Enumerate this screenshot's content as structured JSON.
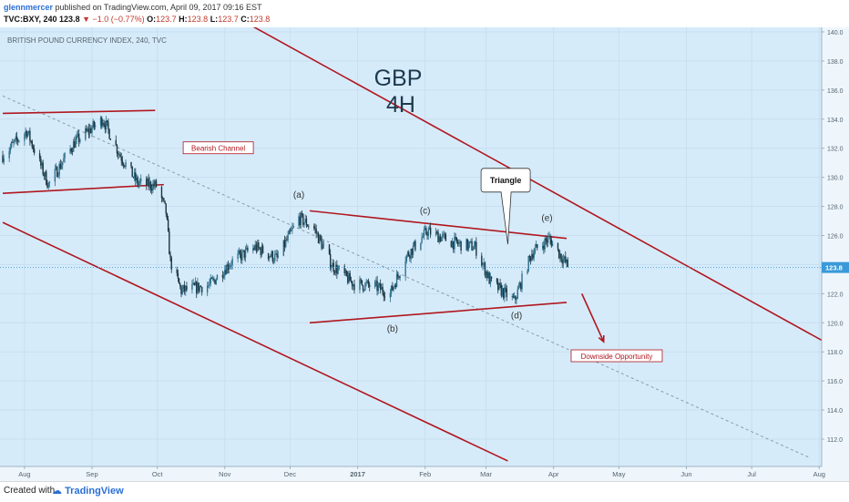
{
  "header": {
    "user": "glennmercer",
    "published": "published on TradingView.com, April 09, 2017 09:16 EST",
    "symbol": "TVC:BXY, 240",
    "last": "123.8",
    "change": "−1.0 (−0.77%)",
    "o_label": "O:",
    "o_value": "123.7",
    "h_label": "H:",
    "h_value": "123.8",
    "l_label": "L:",
    "l_value": "123.7",
    "c_label": "C:",
    "c_value": "123.8"
  },
  "footer": {
    "created": "Created with",
    "brand": "TradingView"
  },
  "colors": {
    "background": "#d6ebfa",
    "channel": "#b0171f",
    "candle_up": "#2f6f8a",
    "candle_down": "#1b3540",
    "price_line": "#4aa3df",
    "price_badge": "#3a9ad9"
  },
  "chart_data": {
    "type": "candlestick",
    "title": "BRITISH POUND CURRENCY INDEX, 240, TVC",
    "headline": [
      "GBP",
      "4H"
    ],
    "x_tick_labels": [
      "Aug",
      "Sep",
      "Oct",
      "Nov",
      "Dec",
      "2017",
      "Feb",
      "Mar",
      "Apr",
      "May",
      "Jun",
      "Jul",
      "Aug"
    ],
    "y_tick_labels": [
      "112.0",
      "114.0",
      "116.0",
      "118.0",
      "120.0",
      "122.0",
      "124.0",
      "126.0",
      "128.0",
      "130.0",
      "132.0",
      "134.0",
      "136.0",
      "138.0",
      "140.0"
    ],
    "ylim": [
      110.5,
      140.5
    ],
    "last_price": 123.8,
    "last_price_label": "123.8",
    "price_anchors": [
      {
        "date": "2016-07-22",
        "price": 131.5
      },
      {
        "date": "2016-08-02",
        "price": 133.2
      },
      {
        "date": "2016-08-12",
        "price": 129.5
      },
      {
        "date": "2016-08-24",
        "price": 132.4
      },
      {
        "date": "2016-09-06",
        "price": 134.0
      },
      {
        "date": "2016-09-14",
        "price": 131.5
      },
      {
        "date": "2016-09-22",
        "price": 129.6
      },
      {
        "date": "2016-10-01",
        "price": 129.4
      },
      {
        "date": "2016-10-05",
        "price": 127.6
      },
      {
        "date": "2016-10-07",
        "price": 124.2
      },
      {
        "date": "2016-10-12",
        "price": 122.2
      },
      {
        "date": "2016-10-25",
        "price": 122.6
      },
      {
        "date": "2016-11-04",
        "price": 124.2
      },
      {
        "date": "2016-11-15",
        "price": 125.2
      },
      {
        "date": "2016-11-25",
        "price": 124.4
      },
      {
        "date": "2016-12-05",
        "price": 127.2
      },
      {
        "date": "2016-12-12",
        "price": 126.5
      },
      {
        "date": "2016-12-20",
        "price": 124.0
      },
      {
        "date": "2016-12-30",
        "price": 122.7
      },
      {
        "date": "2017-01-09",
        "price": 122.5
      },
      {
        "date": "2017-01-16",
        "price": 122.0
      },
      {
        "date": "2017-01-23",
        "price": 124.5
      },
      {
        "date": "2017-02-02",
        "price": 126.3
      },
      {
        "date": "2017-02-14",
        "price": 125.5
      },
      {
        "date": "2017-02-24",
        "price": 125.2
      },
      {
        "date": "2017-03-03",
        "price": 122.8
      },
      {
        "date": "2017-03-14",
        "price": 121.5
      },
      {
        "date": "2017-03-22",
        "price": 124.8
      },
      {
        "date": "2017-03-30",
        "price": 125.8
      },
      {
        "date": "2017-04-08",
        "price": 123.8
      }
    ],
    "annotations": {
      "wave_labels": [
        {
          "text": "(a)",
          "date": "2016-12-05",
          "price": 128.6
        },
        {
          "text": "(b)",
          "date": "2017-01-17",
          "price": 119.4
        },
        {
          "text": "(c)",
          "date": "2017-02-01",
          "price": 127.5
        },
        {
          "text": "(d)",
          "date": "2017-03-15",
          "price": 120.3
        },
        {
          "text": "(e)",
          "date": "2017-03-29",
          "price": 127.0
        }
      ],
      "boxes": [
        {
          "text": "Bearish Channel",
          "date": "2016-10-29",
          "price": 132.0
        },
        {
          "text": "Downside Opportunity",
          "date": "2017-04-30",
          "price": 117.7
        }
      ],
      "callout": {
        "text": "Triangle",
        "date": "2017-03-10",
        "price": 129.8,
        "tip_date": "2017-03-11",
        "tip_price": 125.4
      }
    },
    "lines": {
      "channel_upper": [
        {
          "date": "2016-10-01",
          "price": 144.0
        },
        {
          "date": "2017-08-30",
          "price": 116.5
        }
      ],
      "channel_lower": [
        {
          "date": "2016-07-22",
          "price": 126.9
        },
        {
          "date": "2017-03-11",
          "price": 110.5
        }
      ],
      "midline": [
        {
          "date": "2016-07-22",
          "price": 135.6
        },
        {
          "date": "2017-07-28",
          "price": 110.7
        }
      ],
      "range_top": [
        {
          "date": "2016-07-22",
          "price": 134.4
        },
        {
          "date": "2016-09-30",
          "price": 134.6
        }
      ],
      "range_bottom": [
        {
          "date": "2016-07-22",
          "price": 128.9
        },
        {
          "date": "2016-10-04",
          "price": 129.5
        }
      ],
      "triangle_top": [
        {
          "date": "2016-12-10",
          "price": 127.7
        },
        {
          "date": "2017-04-07",
          "price": 125.8
        }
      ],
      "triangle_bottom": [
        {
          "date": "2016-12-10",
          "price": 120.0
        },
        {
          "date": "2017-04-07",
          "price": 121.4
        }
      ],
      "arrow": [
        {
          "date": "2017-04-14",
          "price": 122.0
        },
        {
          "date": "2017-04-24",
          "price": 118.7
        }
      ]
    }
  }
}
